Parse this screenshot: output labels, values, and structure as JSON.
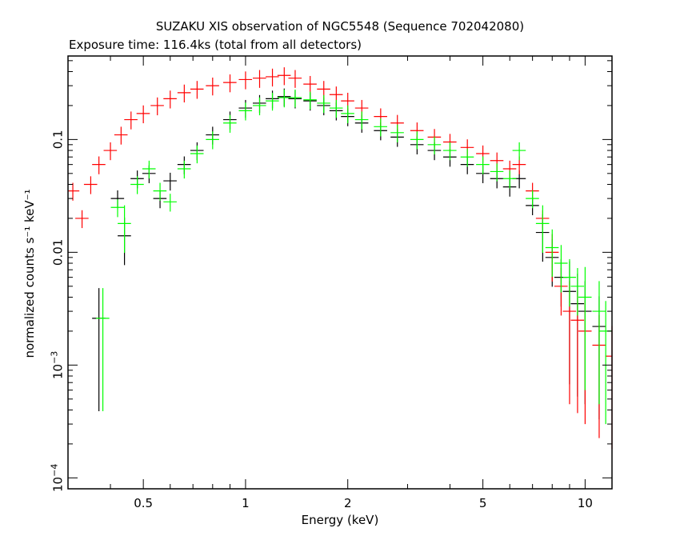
{
  "chart_data": {
    "type": "scatter",
    "title": "SUZAKU XIS observation of NGC5548 (Sequence 702042080)",
    "subtitle": "Exposure time: 116.4ks (total from all detectors)",
    "xlabel": "Energy (keV)",
    "ylabel": "normalized counts s⁻¹ keV⁻¹",
    "x_scale": "log",
    "y_scale": "log",
    "xlim": [
      0.3,
      12
    ],
    "ylim": [
      8e-05,
      0.55
    ],
    "grid": false,
    "x_ticks": [
      {
        "value": 0.5,
        "label": "0.5"
      },
      {
        "value": 1,
        "label": "1"
      },
      {
        "value": 2,
        "label": "2"
      },
      {
        "value": 5,
        "label": "5"
      },
      {
        "value": 10,
        "label": "10"
      }
    ],
    "y_ticks": [
      {
        "value": 0.0001,
        "label": "10",
        "exp": "−4"
      },
      {
        "value": 0.001,
        "label": "10",
        "exp": "−3"
      },
      {
        "value": 0.01,
        "label": "0.01",
        "exp": ""
      },
      {
        "value": 0.1,
        "label": "0.1",
        "exp": ""
      }
    ],
    "series": [
      {
        "color": "#000000",
        "points": [
          [
            0.37,
            0.0026
          ],
          [
            0.42,
            0.03
          ],
          [
            0.44,
            0.014
          ],
          [
            0.48,
            0.045
          ],
          [
            0.52,
            0.05
          ],
          [
            0.56,
            0.03
          ],
          [
            0.6,
            0.043
          ],
          [
            0.66,
            0.06
          ],
          [
            0.72,
            0.08
          ],
          [
            0.8,
            0.11
          ],
          [
            0.9,
            0.15
          ],
          [
            1.0,
            0.19
          ],
          [
            1.1,
            0.21
          ],
          [
            1.2,
            0.23
          ],
          [
            1.3,
            0.24
          ],
          [
            1.4,
            0.23
          ],
          [
            1.55,
            0.22
          ],
          [
            1.7,
            0.2
          ],
          [
            1.85,
            0.18
          ],
          [
            2.0,
            0.16
          ],
          [
            2.2,
            0.14
          ],
          [
            2.5,
            0.12
          ],
          [
            2.8,
            0.105
          ],
          [
            3.2,
            0.09
          ],
          [
            3.6,
            0.08
          ],
          [
            4.0,
            0.07
          ],
          [
            4.5,
            0.06
          ],
          [
            5.0,
            0.05
          ],
          [
            5.5,
            0.045
          ],
          [
            6.0,
            0.038
          ],
          [
            6.4,
            0.045
          ],
          [
            7.0,
            0.026
          ],
          [
            7.5,
            0.015
          ],
          [
            8.0,
            0.009
          ],
          [
            8.5,
            0.006
          ],
          [
            9.0,
            0.0045
          ],
          [
            9.5,
            0.0035
          ],
          [
            10.0,
            0.003
          ],
          [
            11.0,
            0.0022
          ]
        ]
      },
      {
        "color": "#ff0000",
        "points": [
          [
            0.31,
            0.035
          ],
          [
            0.33,
            0.02
          ],
          [
            0.35,
            0.04
          ],
          [
            0.37,
            0.06
          ],
          [
            0.4,
            0.08
          ],
          [
            0.43,
            0.11
          ],
          [
            0.46,
            0.15
          ],
          [
            0.5,
            0.17
          ],
          [
            0.55,
            0.2
          ],
          [
            0.6,
            0.23
          ],
          [
            0.66,
            0.26
          ],
          [
            0.72,
            0.28
          ],
          [
            0.8,
            0.3
          ],
          [
            0.9,
            0.32
          ],
          [
            1.0,
            0.34
          ],
          [
            1.1,
            0.35
          ],
          [
            1.2,
            0.36
          ],
          [
            1.3,
            0.37
          ],
          [
            1.4,
            0.35
          ],
          [
            1.55,
            0.31
          ],
          [
            1.7,
            0.28
          ],
          [
            1.85,
            0.25
          ],
          [
            2.0,
            0.22
          ],
          [
            2.2,
            0.19
          ],
          [
            2.5,
            0.16
          ],
          [
            2.8,
            0.14
          ],
          [
            3.2,
            0.12
          ],
          [
            3.6,
            0.105
          ],
          [
            4.0,
            0.095
          ],
          [
            4.5,
            0.085
          ],
          [
            5.0,
            0.075
          ],
          [
            5.5,
            0.065
          ],
          [
            6.0,
            0.055
          ],
          [
            6.4,
            0.06
          ],
          [
            7.0,
            0.035
          ],
          [
            7.5,
            0.02
          ],
          [
            8.0,
            0.01
          ],
          [
            8.5,
            0.005
          ],
          [
            9.0,
            0.003
          ],
          [
            9.5,
            0.0025
          ],
          [
            10.0,
            0.002
          ],
          [
            11.0,
            0.0015
          ],
          [
            12.0,
            0.0012
          ]
        ]
      },
      {
        "color": "#00ff00",
        "points": [
          [
            0.38,
            0.0026
          ],
          [
            0.42,
            0.025
          ],
          [
            0.44,
            0.018
          ],
          [
            0.48,
            0.04
          ],
          [
            0.52,
            0.055
          ],
          [
            0.56,
            0.035
          ],
          [
            0.6,
            0.028
          ],
          [
            0.66,
            0.055
          ],
          [
            0.72,
            0.075
          ],
          [
            0.8,
            0.1
          ],
          [
            0.9,
            0.14
          ],
          [
            1.0,
            0.18
          ],
          [
            1.1,
            0.2
          ],
          [
            1.2,
            0.22
          ],
          [
            1.3,
            0.235
          ],
          [
            1.4,
            0.235
          ],
          [
            1.55,
            0.225
          ],
          [
            1.7,
            0.21
          ],
          [
            1.85,
            0.19
          ],
          [
            2.0,
            0.17
          ],
          [
            2.2,
            0.15
          ],
          [
            2.5,
            0.13
          ],
          [
            2.8,
            0.115
          ],
          [
            3.2,
            0.1
          ],
          [
            3.6,
            0.09
          ],
          [
            4.0,
            0.08
          ],
          [
            4.5,
            0.07
          ],
          [
            5.0,
            0.06
          ],
          [
            5.5,
            0.052
          ],
          [
            6.0,
            0.045
          ],
          [
            6.4,
            0.08
          ],
          [
            7.0,
            0.03
          ],
          [
            7.5,
            0.018
          ],
          [
            8.0,
            0.011
          ],
          [
            8.5,
            0.008
          ],
          [
            9.0,
            0.006
          ],
          [
            9.5,
            0.005
          ],
          [
            10.0,
            0.004
          ],
          [
            11.0,
            0.003
          ],
          [
            11.5,
            0.002
          ]
        ]
      }
    ]
  }
}
